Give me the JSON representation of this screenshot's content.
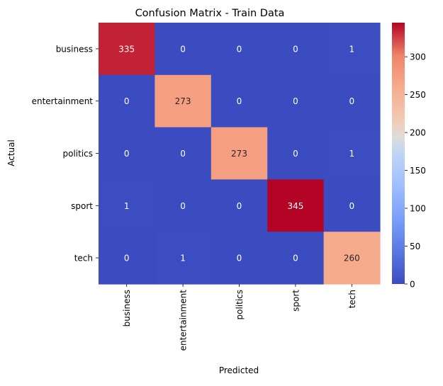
{
  "chart_data": {
    "type": "heatmap",
    "title": "Confusion Matrix - Train Data",
    "xlabel": "Predicted",
    "ylabel": "Actual",
    "x_categories": [
      "business",
      "entertainment",
      "politics",
      "sport",
      "tech"
    ],
    "y_categories": [
      "business",
      "entertainment",
      "politics",
      "sport",
      "tech"
    ],
    "values": [
      [
        335,
        0,
        0,
        0,
        1
      ],
      [
        0,
        273,
        0,
        0,
        0
      ],
      [
        0,
        0,
        273,
        0,
        1
      ],
      [
        1,
        0,
        0,
        345,
        0
      ],
      [
        0,
        1,
        0,
        0,
        260
      ]
    ],
    "colormap": "coolwarm",
    "colorbar": {
      "range": [
        0,
        345
      ],
      "ticks": [
        0,
        50,
        100,
        150,
        200,
        250,
        300
      ]
    },
    "grid": false,
    "annotations": true
  }
}
